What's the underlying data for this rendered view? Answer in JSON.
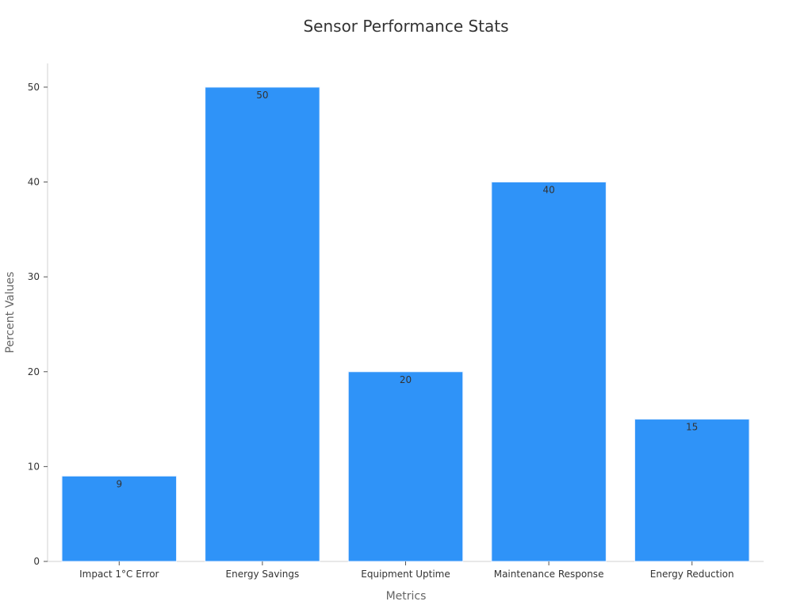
{
  "chart_data": {
    "type": "bar",
    "title": "Sensor Performance Stats",
    "xlabel": "Metrics",
    "ylabel": "Percent Values",
    "categories": [
      "Impact 1°C Error",
      "Energy Savings",
      "Equipment Uptime",
      "Maintenance Response",
      "Energy Reduction"
    ],
    "values": [
      9,
      50,
      20,
      40,
      15
    ],
    "ylim": [
      0,
      52.5
    ],
    "yticks": [
      0,
      10,
      20,
      30,
      40,
      50
    ],
    "bar_color": "#2f93f8",
    "grid": false,
    "legend": "none"
  }
}
